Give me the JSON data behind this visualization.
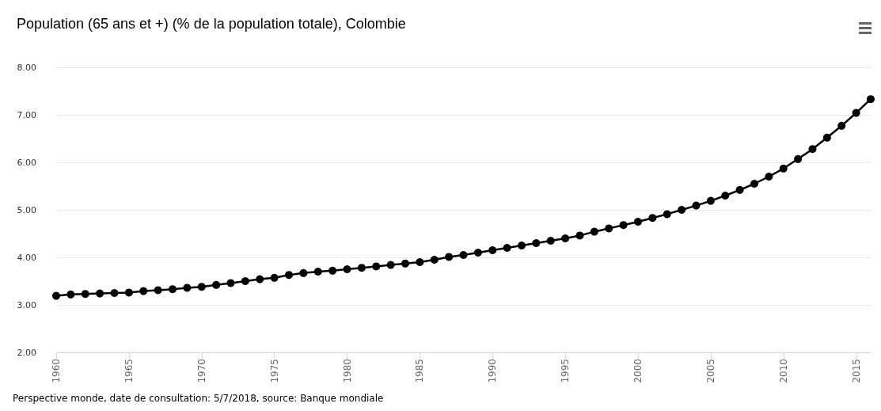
{
  "chart_data": {
    "type": "line",
    "title": "Population (65 ans et +) (% de la population totale), Colombie",
    "annotations": [
      "Perspective monde, date de consultation: 5/7/2018, source: Banque mondiale"
    ],
    "x": [
      1960,
      1961,
      1962,
      1963,
      1964,
      1965,
      1966,
      1967,
      1968,
      1969,
      1970,
      1971,
      1972,
      1973,
      1974,
      1975,
      1976,
      1977,
      1978,
      1979,
      1980,
      1981,
      1982,
      1983,
      1984,
      1985,
      1986,
      1987,
      1988,
      1989,
      1990,
      1991,
      1992,
      1993,
      1994,
      1995,
      1996,
      1997,
      1998,
      1999,
      2000,
      2001,
      2002,
      2003,
      2004,
      2005,
      2006,
      2007,
      2008,
      2009,
      2010,
      2011,
      2012,
      2013,
      2014,
      2015,
      2016
    ],
    "series": [
      {
        "color": "#000000",
        "values": [
          3.19,
          3.22,
          3.23,
          3.24,
          3.25,
          3.26,
          3.29,
          3.31,
          3.33,
          3.36,
          3.38,
          3.42,
          3.46,
          3.5,
          3.54,
          3.57,
          3.63,
          3.67,
          3.7,
          3.72,
          3.75,
          3.78,
          3.81,
          3.84,
          3.87,
          3.9,
          3.95,
          4.01,
          4.05,
          4.1,
          4.15,
          4.2,
          4.25,
          4.3,
          4.35,
          4.4,
          4.46,
          4.54,
          4.61,
          4.68,
          4.75,
          4.83,
          4.91,
          5.0,
          5.09,
          5.19,
          5.3,
          5.42,
          5.55,
          5.7,
          5.87,
          6.07,
          6.28,
          6.52,
          6.77,
          7.04,
          7.33
        ]
      }
    ],
    "xlim": [
      1960,
      2016
    ],
    "xticks": [
      1960,
      1965,
      1970,
      1975,
      1980,
      1985,
      1990,
      1995,
      2000,
      2005,
      2010,
      2015
    ],
    "ylim": [
      2,
      8
    ],
    "yticks": [
      {
        "value": 2,
        "label": "2.00"
      },
      {
        "value": 3,
        "label": "3.00"
      },
      {
        "value": 4,
        "label": "4.00"
      },
      {
        "value": 5,
        "label": "5.00"
      },
      {
        "value": 6,
        "label": "6.00"
      },
      {
        "value": 7,
        "label": "7.00"
      },
      {
        "value": 8,
        "label": "8.00"
      }
    ],
    "grid": "y",
    "marker": "circle",
    "line_style": "solid"
  }
}
